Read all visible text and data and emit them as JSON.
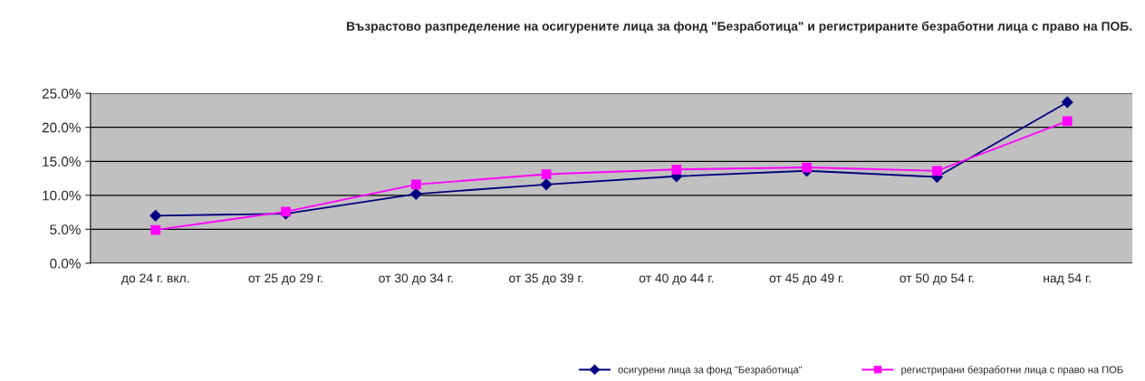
{
  "chart_data": {
    "type": "line",
    "title": "Възрастово разпределение на осигурените лица за фонд \"Безработица\" и регистрираните безработни лица с право на ПОБ.",
    "categories": [
      "до 24 г. вкл.",
      "от 25 до 29 г.",
      "от 30 до 34 г.",
      "от 35 до 39 г.",
      "от 40 до 44 г.",
      "от 45 до 49 г.",
      "от 50 до 54 г.",
      "над 54 г."
    ],
    "series": [
      {
        "name": "осигурени лица за фонд \"Безработица\"",
        "color": "#000080",
        "marker": "diamond",
        "values": [
          7.0,
          7.3,
          10.2,
          11.6,
          12.8,
          13.6,
          12.7,
          23.7
        ]
      },
      {
        "name": "регистрирани безработни лица с право на ПОБ",
        "color": "#ff00ff",
        "marker": "square",
        "values": [
          4.9,
          7.6,
          11.6,
          13.1,
          13.8,
          14.1,
          13.6,
          20.9
        ]
      }
    ],
    "ylim": [
      0,
      25
    ],
    "yticks": [
      {
        "value": 0,
        "label": "0.0%"
      },
      {
        "value": 5,
        "label": "5.0%"
      },
      {
        "value": 10,
        "label": "10.0%"
      },
      {
        "value": 15,
        "label": "15.0%"
      },
      {
        "value": 20,
        "label": "20.0%"
      },
      {
        "value": 25,
        "label": "25.0%"
      }
    ],
    "grid": "y",
    "legend": "bottom right",
    "line_style": "solid"
  }
}
